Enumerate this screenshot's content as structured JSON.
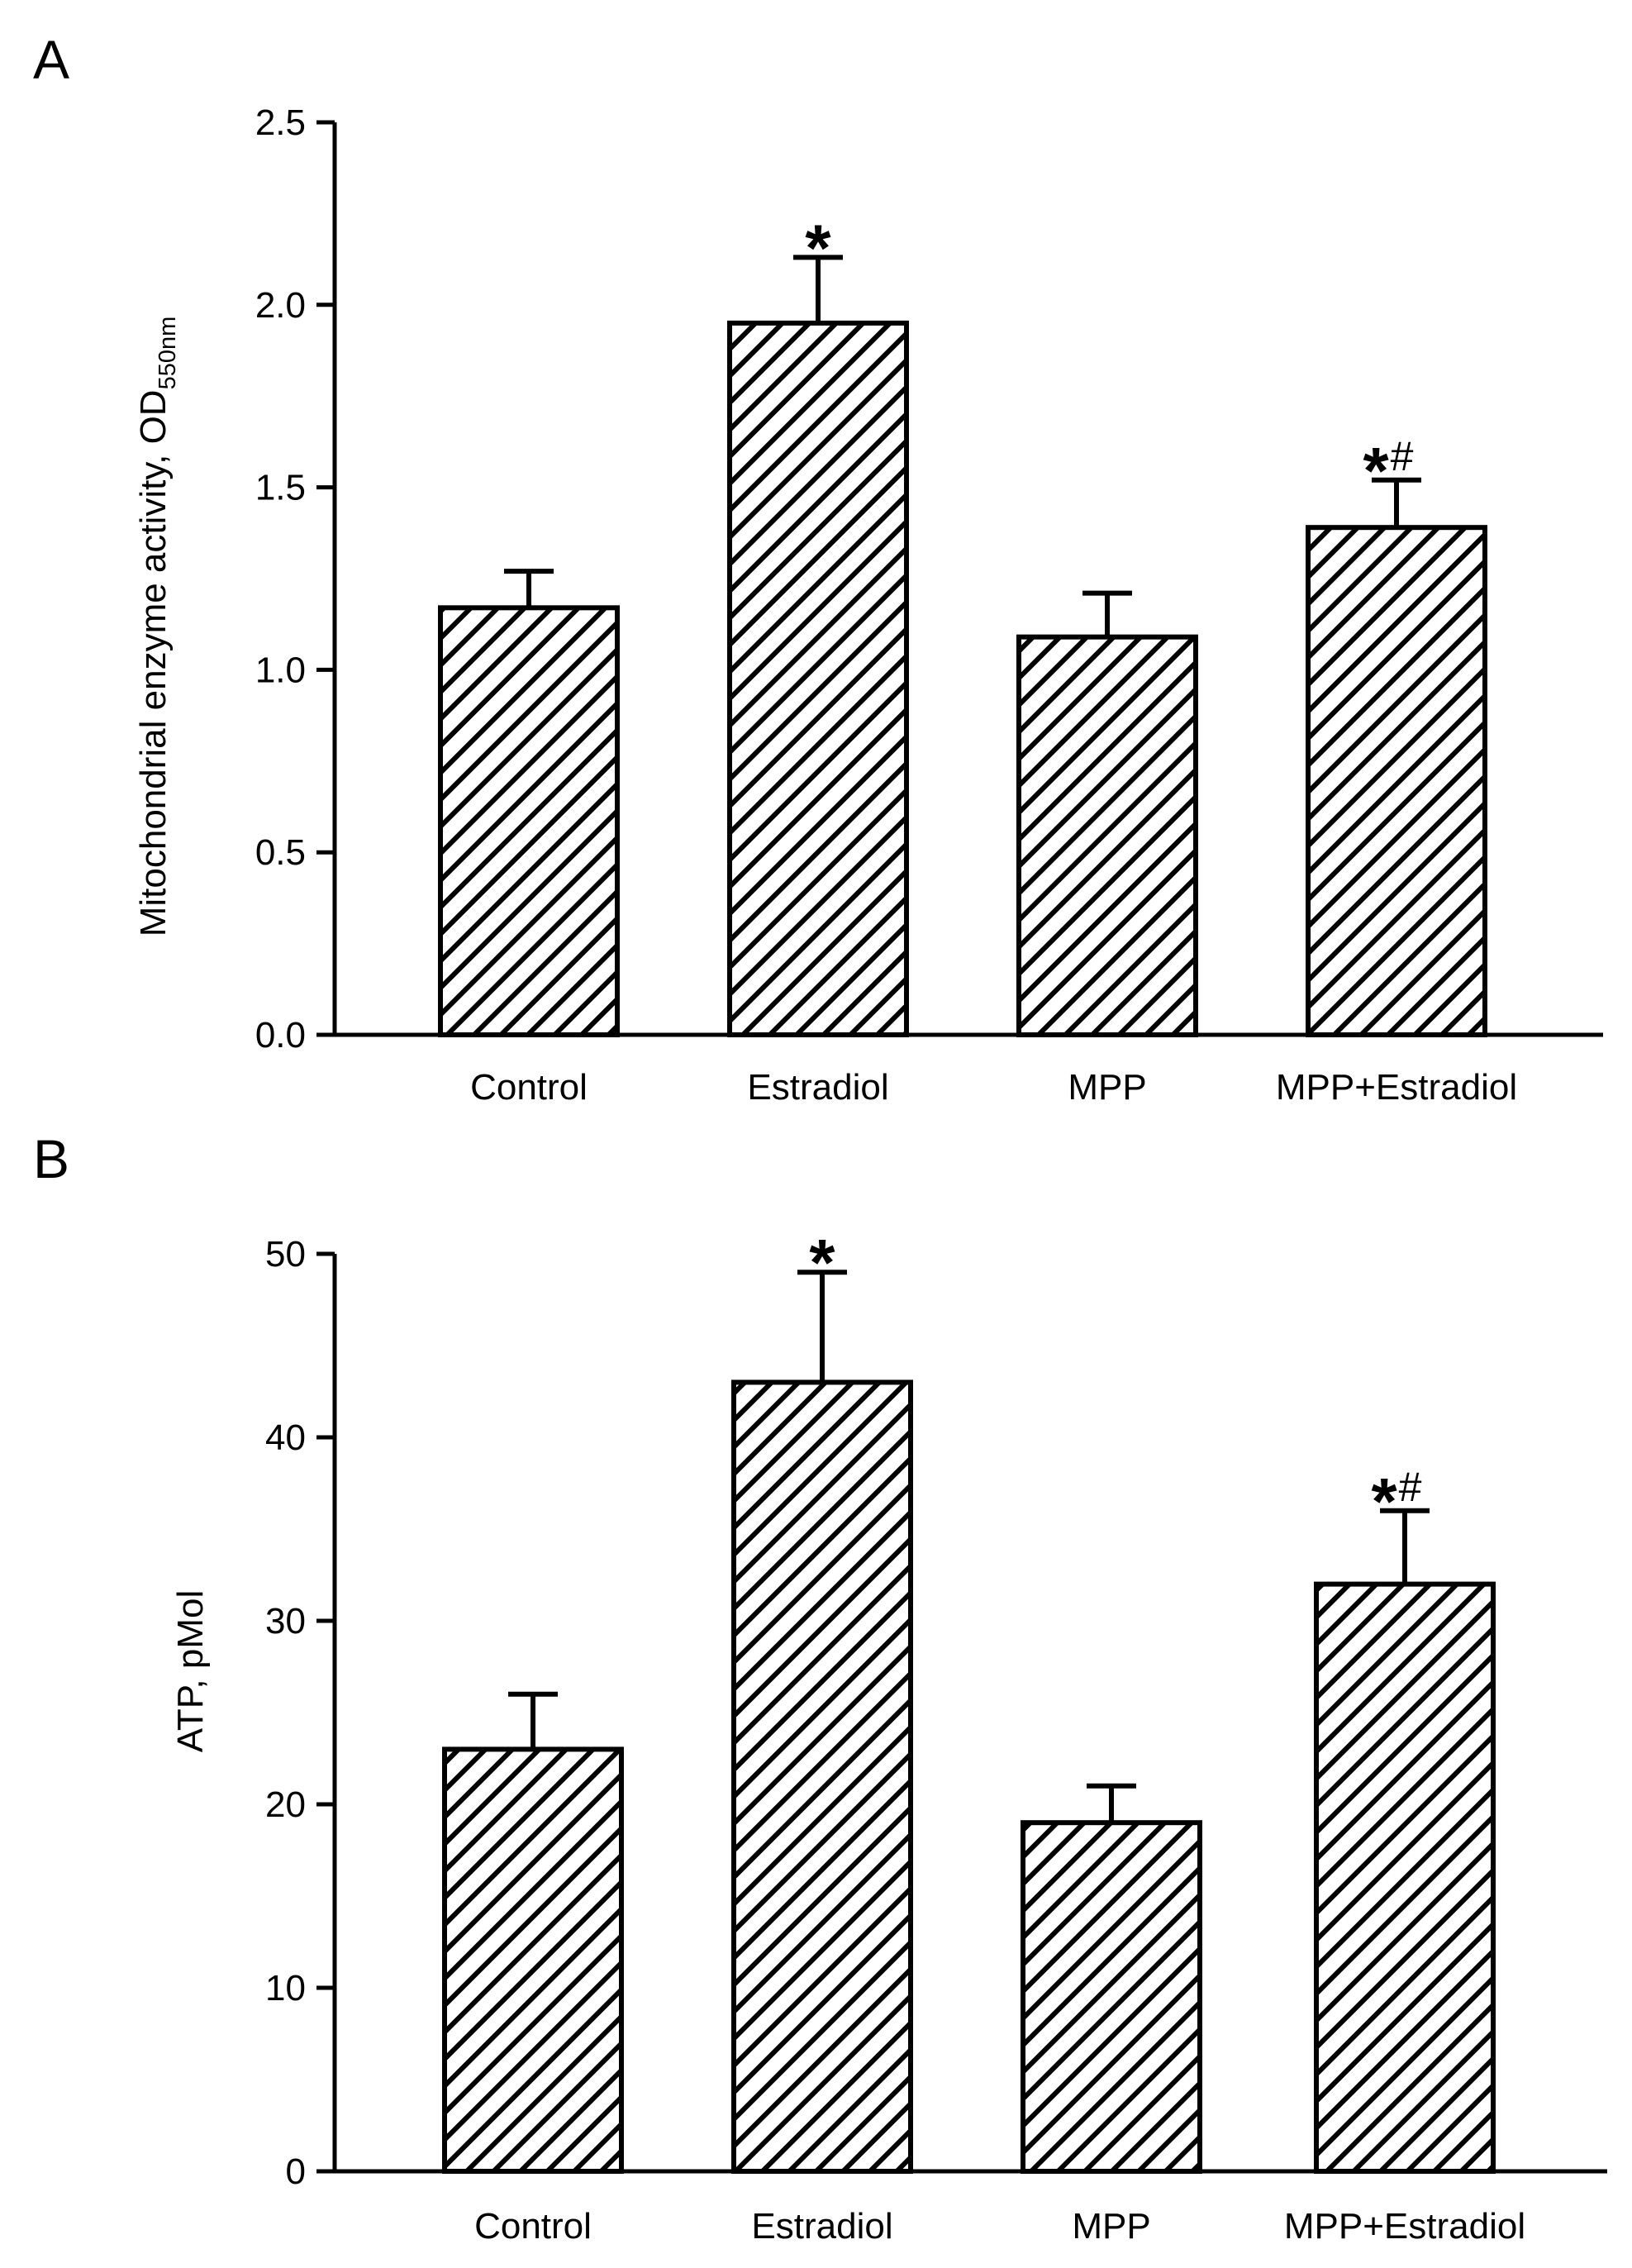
{
  "colors": {
    "stroke": "#000000",
    "fill": "#ffffff",
    "hatch": "#000000"
  },
  "chart_data": [
    {
      "type": "bar",
      "panel": "A",
      "title": "",
      "ylabel": "Mitochondrial enzyme activity, OD",
      "ylabel_subscript": "550nm",
      "xlabel": "",
      "categories": [
        "Control",
        "Estradiol",
        "MPP",
        "MPP+Estradiol"
      ],
      "values": [
        1.17,
        1.95,
        1.09,
        1.39
      ],
      "errors": [
        0.1,
        0.18,
        0.12,
        0.13
      ],
      "annotations": [
        "",
        "*",
        "",
        "*#"
      ],
      "ylim": [
        0,
        2.5
      ],
      "yticks": [
        "0.0",
        "0.5",
        "1.0",
        "1.5",
        "2.0",
        "2.5"
      ],
      "ytick_values": [
        0,
        0.5,
        1.0,
        1.5,
        2.0,
        2.5
      ],
      "grid": false,
      "pattern": "diagonal-hatch"
    },
    {
      "type": "bar",
      "panel": "B",
      "title": "",
      "ylabel": "ATP, pMol",
      "ylabel_subscript": "",
      "xlabel": "",
      "categories": [
        "Control",
        "Estradiol",
        "MPP",
        "MPP+Estradiol"
      ],
      "values": [
        23,
        43,
        19,
        32
      ],
      "errors": [
        3,
        6,
        2,
        4
      ],
      "annotations": [
        "",
        "*",
        "",
        "*#"
      ],
      "ylim": [
        0,
        50
      ],
      "yticks": [
        "0",
        "10",
        "20",
        "30",
        "40",
        "50"
      ],
      "ytick_values": [
        0,
        10,
        20,
        30,
        40,
        50
      ],
      "grid": false,
      "pattern": "diagonal-hatch"
    }
  ]
}
